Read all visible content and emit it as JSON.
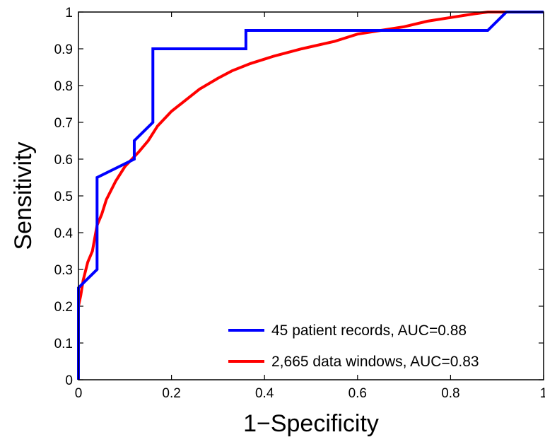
{
  "chart_data": {
    "type": "line",
    "title": "",
    "xlabel": "1−Specificity",
    "ylabel": "Sensitivity",
    "xlim": [
      0,
      1
    ],
    "ylim": [
      0,
      1
    ],
    "xticks": [
      "0",
      "0.2",
      "0.4",
      "0.6",
      "0.8",
      "1"
    ],
    "yticks": [
      "0",
      "0.1",
      "0.2",
      "0.3",
      "0.4",
      "0.5",
      "0.6",
      "0.7",
      "0.8",
      "0.9",
      "1"
    ],
    "grid": false,
    "legend_position": "bottom-right",
    "series": [
      {
        "name": "45 patient records, AUC=0.88",
        "color": "#0000ff",
        "x": [
          0,
          0,
          0.04,
          0.04,
          0.12,
          0.12,
          0.16,
          0.16,
          0.36,
          0.36,
          0.88,
          0.92,
          1
        ],
        "y": [
          0,
          0.25,
          0.3,
          0.55,
          0.6,
          0.65,
          0.7,
          0.9,
          0.9,
          0.95,
          0.95,
          1,
          1
        ]
      },
      {
        "name": "2,665 data windows, AUC=0.83",
        "color": "#ff0000",
        "x": [
          0,
          0.005,
          0.01,
          0.02,
          0.03,
          0.04,
          0.05,
          0.06,
          0.08,
          0.1,
          0.13,
          0.15,
          0.17,
          0.2,
          0.26,
          0.3,
          0.33,
          0.37,
          0.42,
          0.48,
          0.55,
          0.6,
          0.65,
          0.7,
          0.75,
          0.8,
          0.85,
          0.88,
          0.9,
          0.92,
          1
        ],
        "y": [
          0.2,
          0.23,
          0.27,
          0.32,
          0.35,
          0.42,
          0.45,
          0.49,
          0.54,
          0.58,
          0.62,
          0.65,
          0.69,
          0.73,
          0.79,
          0.82,
          0.84,
          0.86,
          0.88,
          0.9,
          0.92,
          0.94,
          0.95,
          0.96,
          0.975,
          0.985,
          0.995,
          1,
          1,
          1,
          1
        ]
      }
    ]
  }
}
